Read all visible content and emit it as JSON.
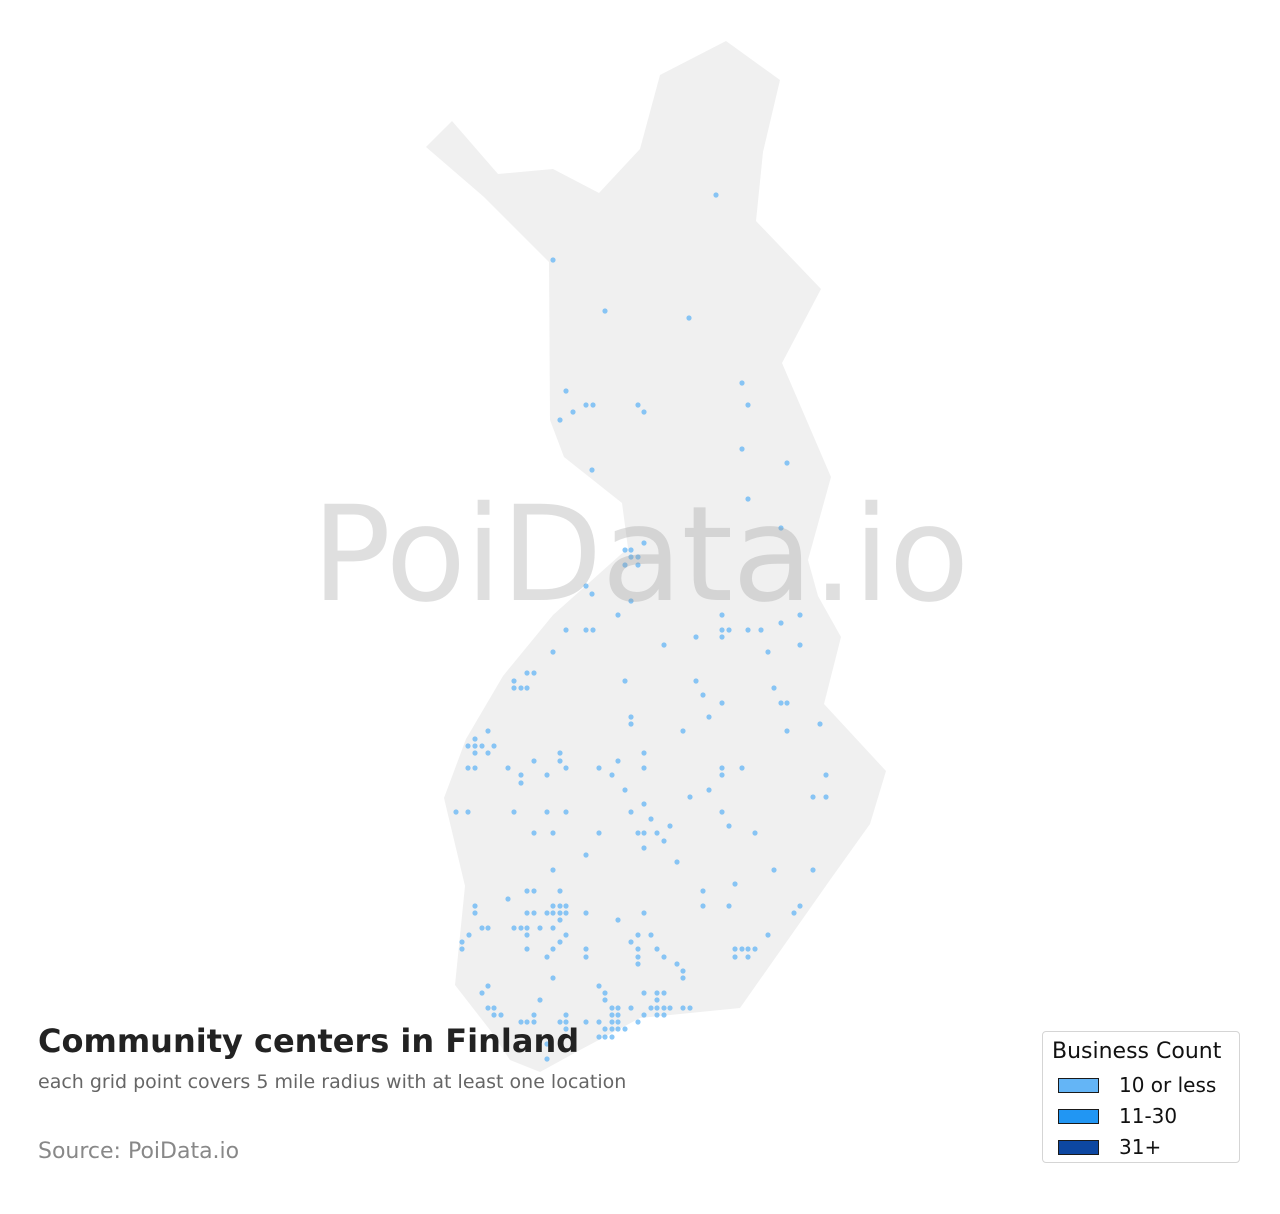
{
  "title": "Community centers in Finland",
  "subtitle": "each grid point covers 5 mile radius with at least one location",
  "source": "Source: PoiData.io",
  "watermark": "PoiData.io",
  "colors": {
    "land": "#f0f0f0",
    "dot": "#64b5f6"
  },
  "legend": {
    "title": "Business Count",
    "items": [
      {
        "label": "10 or less",
        "color": "#64b5f6"
      },
      {
        "label": "11-30",
        "color": "#2196f3"
      },
      {
        "label": "31+",
        "color": "#0d47a1"
      }
    ]
  }
}
